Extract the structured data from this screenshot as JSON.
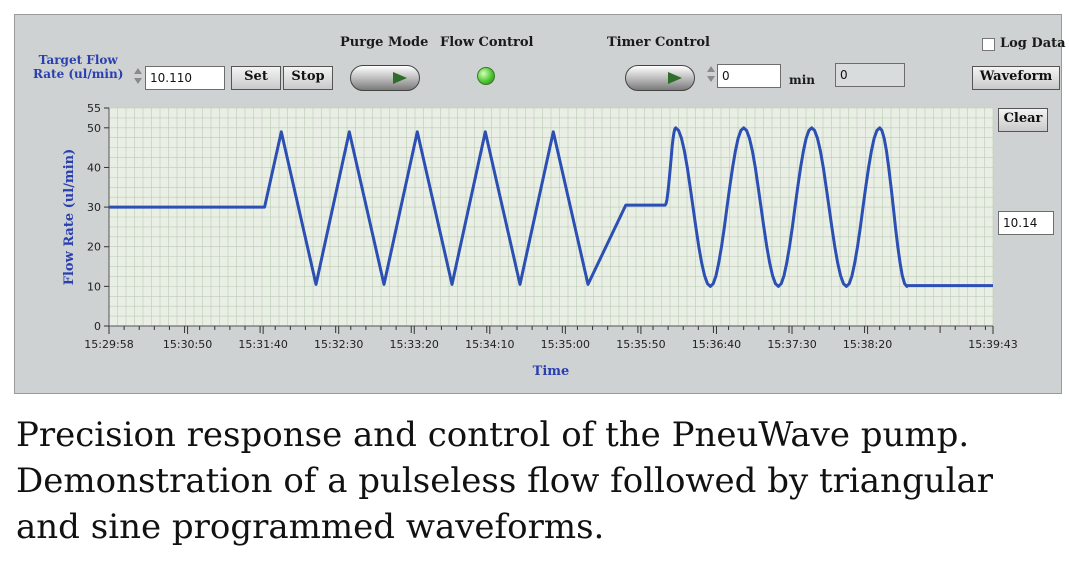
{
  "controls": {
    "target_flow_line1": "Target Flow",
    "target_flow_line2": "Rate (ul/min)",
    "target_flow_value": "10.110",
    "set_label": "Set",
    "stop_label": "Stop",
    "purge_mode_label": "Purge Mode",
    "flow_control_label": "Flow Control",
    "timer_control_label": "Timer Control",
    "timer_value": "0",
    "timer_unit": "min",
    "timer_readout": "0",
    "log_data_label": "Log Data",
    "waveform_label": "Waveform",
    "clear_label": "Clear",
    "current_value": "10.14"
  },
  "colors": {
    "panel": "#cfd2d2",
    "plot_bg": "#e9efe4",
    "grid": "#bccbb6",
    "trace": "#2b4fb3",
    "axis_label": "#2a3fb0",
    "led_on": "#4cc734"
  },
  "chart_data": {
    "type": "line",
    "xlabel": "Time",
    "ylabel": "Flow Rate  (ul/min)",
    "ylim": [
      0,
      55
    ],
    "yticks": [
      0,
      10,
      20,
      30,
      40,
      50,
      55
    ],
    "xlim": [
      "15:29:58",
      "15:39:43"
    ],
    "xticks": [
      "15:29:58",
      "15:30:50",
      "15:31:40",
      "15:32:30",
      "15:33:20",
      "15:34:10",
      "15:35:00",
      "15:35:50",
      "15:36:40",
      "15:37:30",
      "15:38:20",
      "15:39:43"
    ],
    "grid": true,
    "series": [
      {
        "segments": [
          {
            "shape": "constant",
            "start": "15:29:58",
            "end": "15:31:41",
            "value": 30
          },
          {
            "shape": "triangle",
            "start": "15:31:41",
            "end": "15:35:40",
            "min": 10.5,
            "max": 49,
            "peaks": [
              "15:31:52",
              "15:32:37",
              "15:33:22",
              "15:34:07",
              "15:34:52"
            ],
            "troughs": [
              "15:32:15",
              "15:33:00",
              "15:33:45",
              "15:34:30",
              "15:35:15"
            ]
          },
          {
            "shape": "constant",
            "start": "15:35:40",
            "end": "15:36:06",
            "value": 30.5
          },
          {
            "shape": "sine",
            "start": "15:36:06",
            "end": "15:38:46",
            "min": 10,
            "max": 50,
            "peaks": [
              "15:36:13",
              "15:36:58",
              "15:37:43",
              "15:38:28"
            ],
            "troughs": [
              "15:36:36",
              "15:37:21",
              "15:38:06"
            ]
          },
          {
            "shape": "constant",
            "start": "15:38:46",
            "end": "15:39:43",
            "value": 10.2
          }
        ]
      }
    ]
  },
  "caption": {
    "line1": "Precision response and control of the PneuWave pump.",
    "line2": "Demonstration of a pulseless flow followed by triangular",
    "line3": "and sine programmed waveforms."
  }
}
